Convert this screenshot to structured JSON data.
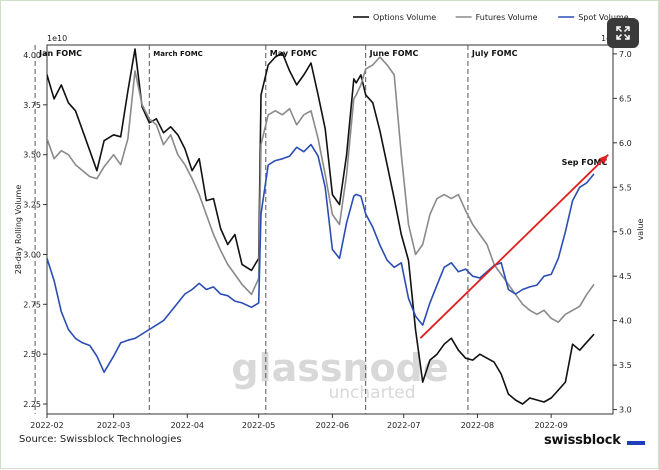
{
  "chart_data": {
    "type": "line",
    "title": "",
    "xlabel": "",
    "ylabel": "28-day Rolling Volume",
    "ylabel_right": "value",
    "y_exponent_left": "1e10",
    "y_exponent_right": "1e9",
    "ylim": [
      2.2,
      4.05
    ],
    "ylim_right": [
      2.95,
      7.1
    ],
    "yticks": [
      "2.25",
      "2.50",
      "2.75",
      "3.00",
      "3.25",
      "3.50",
      "3.75",
      "4.00"
    ],
    "yticks_right": [
      "3.0",
      "3.5",
      "4.0",
      "4.5",
      "5.0",
      "5.5",
      "6.0",
      "6.5",
      "7.0"
    ],
    "xlim": [
      0,
      238
    ],
    "x_tick_positions": [
      0,
      28,
      59,
      89,
      120,
      150,
      181,
      212
    ],
    "x_tick_labels": [
      "2022-02",
      "2022-03",
      "2022-04",
      "2022-05",
      "2022-06",
      "2022-07",
      "2022-08",
      "2022-09"
    ],
    "legend_position": "top-right",
    "annotations": [
      {
        "label": "Jan FOMC",
        "x": -5
      },
      {
        "label": "March FOMC",
        "x": 43
      },
      {
        "label": "May FOMC",
        "x": 92
      },
      {
        "label": "June FOMC",
        "x": 134
      },
      {
        "label": "July FOMC",
        "x": 177
      },
      {
        "label": "Sep FOMC",
        "x": 226
      }
    ],
    "trend_arrow": {
      "x": [
        157,
        236
      ],
      "y": [
        2.58,
        3.5
      ]
    },
    "series": [
      {
        "name": "Options Volume",
        "color": "#111111",
        "axis": "left",
        "x": [
          -8,
          -5,
          -2,
          0,
          3,
          6,
          9,
          12,
          15,
          18,
          21,
          24,
          28,
          31,
          34,
          37,
          40,
          43,
          46,
          49,
          52,
          55,
          58,
          61,
          64,
          67,
          70,
          73,
          76,
          79,
          82,
          86,
          89,
          90,
          93,
          96,
          99,
          102,
          105,
          108,
          111,
          114,
          117,
          120,
          123,
          126,
          129,
          130,
          132,
          134,
          137,
          140,
          143,
          146,
          149,
          152,
          155,
          158,
          161,
          164,
          167,
          170,
          173,
          176,
          179,
          182,
          185,
          188,
          191,
          194,
          197,
          200,
          203,
          206,
          209,
          212,
          215,
          218,
          221,
          224,
          227,
          230
        ],
        "y": [
          3.98,
          4.02,
          3.95,
          3.9,
          3.78,
          3.85,
          3.76,
          3.72,
          3.62,
          3.52,
          3.42,
          3.57,
          3.6,
          3.59,
          3.82,
          4.03,
          3.74,
          3.66,
          3.68,
          3.61,
          3.64,
          3.6,
          3.53,
          3.42,
          3.48,
          3.27,
          3.28,
          3.13,
          3.05,
          3.1,
          2.95,
          2.92,
          2.98,
          3.8,
          3.95,
          3.99,
          4.01,
          3.92,
          3.85,
          3.9,
          3.96,
          3.8,
          3.63,
          3.3,
          3.25,
          3.5,
          3.88,
          3.86,
          3.9,
          3.8,
          3.76,
          3.62,
          3.45,
          3.28,
          3.1,
          2.97,
          2.62,
          2.36,
          2.47,
          2.5,
          2.55,
          2.58,
          2.52,
          2.48,
          2.47,
          2.5,
          2.48,
          2.46,
          2.4,
          2.3,
          2.27,
          2.25,
          2.28,
          2.27,
          2.26,
          2.28,
          2.32,
          2.36,
          2.55,
          2.52,
          2.56,
          2.6
        ]
      },
      {
        "name": "Futures Volume",
        "color": "#8a8a8a",
        "axis": "left",
        "x": [
          -8,
          -5,
          -2,
          0,
          3,
          6,
          9,
          12,
          15,
          18,
          21,
          24,
          28,
          31,
          34,
          37,
          40,
          43,
          46,
          49,
          52,
          55,
          58,
          61,
          64,
          67,
          70,
          73,
          76,
          79,
          82,
          86,
          89,
          90,
          93,
          96,
          99,
          102,
          105,
          108,
          111,
          114,
          117,
          120,
          123,
          126,
          129,
          130,
          132,
          134,
          137,
          140,
          143,
          146,
          149,
          152,
          155,
          158,
          161,
          164,
          167,
          170,
          173,
          176,
          179,
          182,
          185,
          188,
          191,
          194,
          197,
          200,
          203,
          206,
          209,
          212,
          215,
          218,
          221,
          224,
          227,
          230
        ],
        "y": [
          3.6,
          3.67,
          3.62,
          3.58,
          3.48,
          3.52,
          3.5,
          3.45,
          3.42,
          3.39,
          3.38,
          3.44,
          3.5,
          3.45,
          3.58,
          3.92,
          3.75,
          3.68,
          3.65,
          3.55,
          3.6,
          3.5,
          3.45,
          3.38,
          3.3,
          3.2,
          3.1,
          3.02,
          2.95,
          2.9,
          2.85,
          2.8,
          2.88,
          3.55,
          3.7,
          3.72,
          3.7,
          3.73,
          3.65,
          3.7,
          3.72,
          3.58,
          3.4,
          3.2,
          3.15,
          3.4,
          3.78,
          3.8,
          3.85,
          3.93,
          3.95,
          3.99,
          3.95,
          3.9,
          3.5,
          3.15,
          3.0,
          3.05,
          3.2,
          3.28,
          3.3,
          3.28,
          3.3,
          3.22,
          3.15,
          3.1,
          3.05,
          2.95,
          2.9,
          2.85,
          2.8,
          2.75,
          2.72,
          2.7,
          2.72,
          2.68,
          2.66,
          2.7,
          2.72,
          2.74,
          2.8,
          2.85
        ]
      },
      {
        "name": "Spot Volume",
        "color": "#2a4db5",
        "axis": "right",
        "x": [
          -8,
          -5,
          -2,
          0,
          3,
          6,
          9,
          12,
          15,
          18,
          21,
          24,
          28,
          31,
          34,
          37,
          40,
          43,
          46,
          49,
          52,
          55,
          58,
          61,
          64,
          67,
          70,
          73,
          76,
          79,
          82,
          86,
          89,
          90,
          93,
          96,
          99,
          102,
          105,
          108,
          111,
          114,
          117,
          120,
          123,
          126,
          129,
          130,
          132,
          134,
          137,
          140,
          143,
          146,
          149,
          152,
          155,
          158,
          161,
          164,
          167,
          170,
          173,
          176,
          179,
          182,
          185,
          188,
          191,
          194,
          197,
          200,
          203,
          206,
          209,
          212,
          215,
          218,
          221,
          224,
          227,
          230
        ],
        "y": [
          5.2,
          5.15,
          4.95,
          4.7,
          4.45,
          4.1,
          3.9,
          3.8,
          3.75,
          3.72,
          3.6,
          3.42,
          3.6,
          3.75,
          3.78,
          3.8,
          3.85,
          3.9,
          3.95,
          4.0,
          4.1,
          4.2,
          4.3,
          4.35,
          4.42,
          4.35,
          4.38,
          4.3,
          4.28,
          4.22,
          4.2,
          4.15,
          4.2,
          5.2,
          5.75,
          5.8,
          5.82,
          5.85,
          5.95,
          5.9,
          5.98,
          5.85,
          5.5,
          4.8,
          4.7,
          5.1,
          5.4,
          5.42,
          5.4,
          5.2,
          5.05,
          4.85,
          4.68,
          4.6,
          4.65,
          4.25,
          4.05,
          3.95,
          4.2,
          4.4,
          4.6,
          4.65,
          4.55,
          4.58,
          4.5,
          4.48,
          4.55,
          4.62,
          4.65,
          4.35,
          4.3,
          4.35,
          4.38,
          4.4,
          4.5,
          4.52,
          4.7,
          5.0,
          5.35,
          5.5,
          5.55,
          5.65
        ]
      }
    ]
  },
  "watermark": {
    "line1": "glassnode",
    "line2": "uncharted"
  },
  "footer": {
    "source": "Source: Swissblock Technologies",
    "brand": "swissblock"
  },
  "icons": {
    "expand": "expand-arrows-icon"
  }
}
